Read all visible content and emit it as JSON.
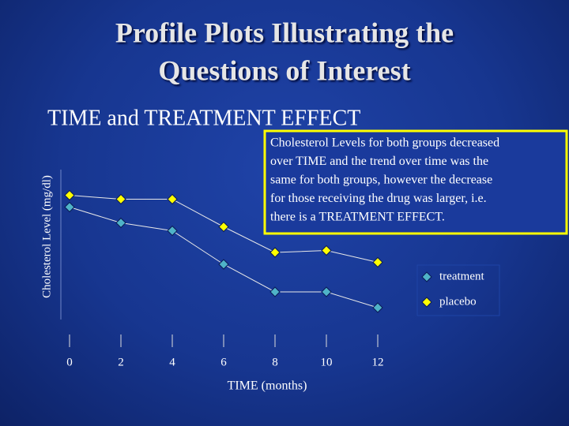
{
  "chart_data": {
    "type": "line",
    "title": [
      "Profile Plots Illustrating the",
      "Questions of Interest"
    ],
    "subtitle": "TIME and TREATMENT EFFECT",
    "y_label": "Cholesterol Level (mg/dl)",
    "x_label": "TIME (months)",
    "annotation": [
      "Cholesterol Levels for both groups decreased",
      "over TIME and the trend over time was the",
      "same for both groups, however the decrease",
      "for those receiving the drug was larger, i.e.",
      "there is a TREATMENT EFFECT."
    ],
    "x": [
      0,
      2,
      4,
      6,
      8,
      10,
      12
    ],
    "xlim": [
      0,
      12
    ],
    "xticks": [
      0,
      2,
      4,
      6,
      8,
      10,
      12
    ],
    "ylim": [
      0,
      100
    ],
    "legend": "right",
    "series": [
      {
        "name": "treatment",
        "color": "#4fb3c8",
        "values": [
          67,
          59,
          55,
          38,
          24,
          24,
          16
        ]
      },
      {
        "name": "placebo",
        "color": "#ffff00",
        "values": [
          73,
          71,
          71,
          57,
          44,
          45,
          39
        ]
      }
    ]
  }
}
